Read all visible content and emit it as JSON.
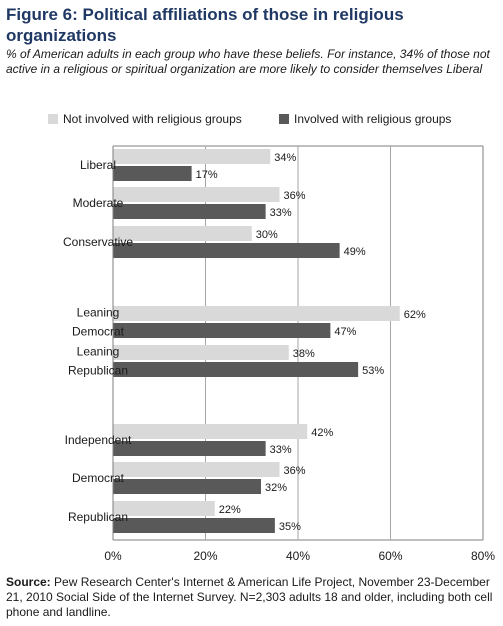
{
  "figure": {
    "title": "Figure 6: Political affiliations of those in religious organizations",
    "subtitle": "% of American adults in each group who have these beliefs. For instance, 34% of those not active in a religious or spiritual organization are more likely to consider themselves Liberal",
    "source_label": "Source:",
    "source_text": "Pew Research Center's Internet & American Life Project, November 23-December 21, 2010 Social Side of the Internet Survey. N=2,303 adults 18 and older, including both cell phone and landline."
  },
  "colors": {
    "not_involved": "#d9d9d9",
    "involved": "#595959",
    "gridline": "#a6a6a6"
  },
  "chart_data": {
    "type": "bar",
    "orientation": "horizontal",
    "categories": [
      "Liberal",
      "Moderate",
      "Conservative",
      "Leaning Democrat",
      "Leaning Republican",
      "Independent",
      "Democrat",
      "Republican"
    ],
    "category_lines": [
      [
        "Liberal"
      ],
      [
        "Moderate"
      ],
      [
        "Conservative"
      ],
      [
        "Leaning",
        "Democrat"
      ],
      [
        "Leaning",
        "Republican"
      ],
      [
        "Independent"
      ],
      [
        "Democrat"
      ],
      [
        "Republican"
      ]
    ],
    "series": [
      {
        "name": "Not involved with religious groups",
        "values": [
          34,
          36,
          30,
          62,
          38,
          42,
          36,
          22
        ]
      },
      {
        "name": "Involved with religious groups",
        "values": [
          17,
          33,
          49,
          47,
          53,
          33,
          32,
          35
        ]
      }
    ],
    "value_suffix": "%",
    "xlim": [
      0,
      80
    ],
    "xticks": [
      "0%",
      "20%",
      "40%",
      "60%",
      "80%"
    ],
    "grid": true,
    "legend_position": "top"
  }
}
